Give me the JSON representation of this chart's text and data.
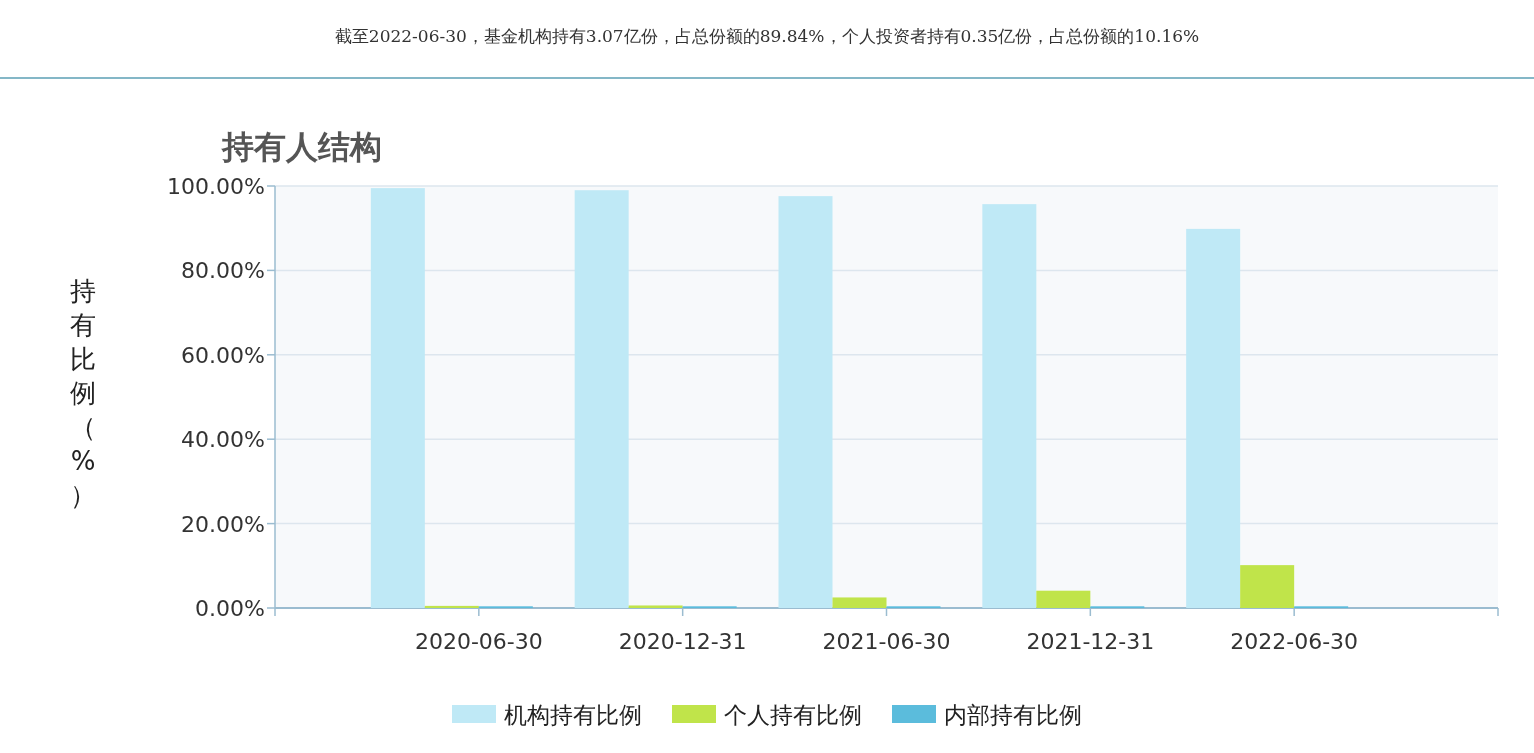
{
  "chart_data": {
    "type": "bar",
    "title": "持有人结构",
    "ylabel": "持有比例（%）",
    "annotations": [
      "截至2022-06-30，基金机构持有3.07亿份，占总份额的89.84%，个人投资者持有0.35亿份，占总份额的10.16%"
    ],
    "categories": [
      "2020-06-30",
      "2020-12-31",
      "2021-06-30",
      "2021-12-31",
      "2022-06-30"
    ],
    "series": [
      {
        "name": "机构持有比例",
        "color": "#bfe9f6",
        "values": [
          99.5,
          99.0,
          97.6,
          95.7,
          89.84
        ]
      },
      {
        "name": "个人持有比例",
        "color": "#c0e44a",
        "values": [
          0.5,
          0.6,
          2.5,
          4.1,
          10.16
        ]
      },
      {
        "name": "内部持有比例",
        "color": "#5bbcdc",
        "values": [
          0.4,
          0.4,
          0.4,
          0.4,
          0.4
        ]
      }
    ],
    "ylim": [
      0,
      100
    ],
    "yticks": [
      {
        "value": 0,
        "label": "0.00%"
      },
      {
        "value": 20,
        "label": "20.00%"
      },
      {
        "value": 40,
        "label": "40.00%"
      },
      {
        "value": 60,
        "label": "60.00%"
      },
      {
        "value": 80,
        "label": "80.00%"
      },
      {
        "value": 100,
        "label": "100.00%"
      }
    ],
    "grid": "y",
    "legend": "bottom"
  }
}
